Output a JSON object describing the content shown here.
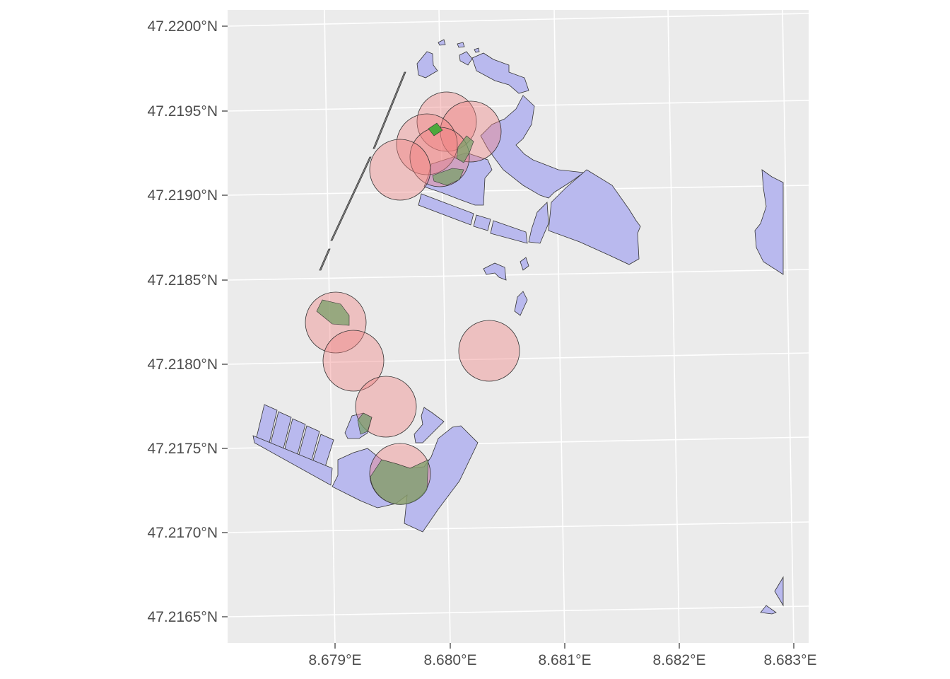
{
  "plot": {
    "panel_background": "#ebebeb",
    "grid_color": "#ffffff",
    "y_axis": {
      "labels": [
        "47.2200°N",
        "47.2195°N",
        "47.2190°N",
        "47.2185°N",
        "47.2180°N",
        "47.2175°N",
        "47.2170°N",
        "47.2165°N"
      ]
    },
    "x_axis": {
      "labels": [
        "8.679°E",
        "8.680°E",
        "8.681°E",
        "8.682°E",
        "8.683°E"
      ]
    },
    "layers": {
      "buildings": {
        "fill": "#b9b9ee",
        "outline": "#333333",
        "label": "blue polygons"
      },
      "buffers": {
        "fill": "#f08080",
        "opacity": 0.4,
        "label": "red circles"
      },
      "intersections": {
        "fill": "#7aa06a",
        "label": "green overlaps"
      }
    }
  }
}
